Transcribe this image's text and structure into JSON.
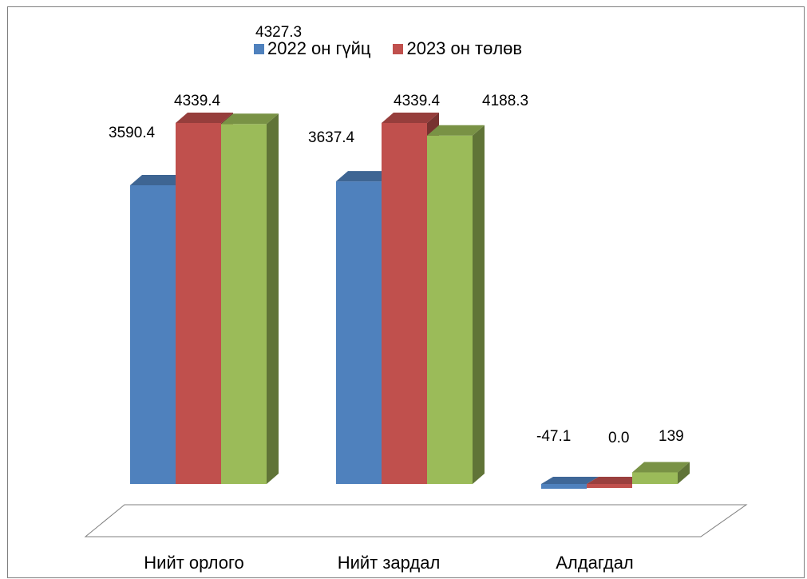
{
  "chart_data": {
    "type": "bar",
    "categories": [
      "Нийт орлого",
      "Нийт зардал",
      "Алдагдал"
    ],
    "series": [
      {
        "name": "2022 он гүйц",
        "color": "#4f81bd",
        "values": [
          3590.4,
          3637.4,
          -47.1
        ],
        "labels": [
          "3590.4",
          "3637.4",
          "-47.1"
        ]
      },
      {
        "name": "2023 он төлөв",
        "color": "#c0504d",
        "values": [
          4339.4,
          4339.4,
          0.0
        ],
        "labels": [
          "4339.4",
          "4339.4",
          "0.0"
        ]
      },
      {
        "name": "",
        "color": "#9bbb59",
        "values": [
          4327.3,
          4188.3,
          139
        ],
        "labels": [
          "4327.3",
          "4188.3",
          "139"
        ]
      }
    ],
    "ylim": [
      0,
      4800
    ],
    "grid": false,
    "legend_position": "top"
  }
}
